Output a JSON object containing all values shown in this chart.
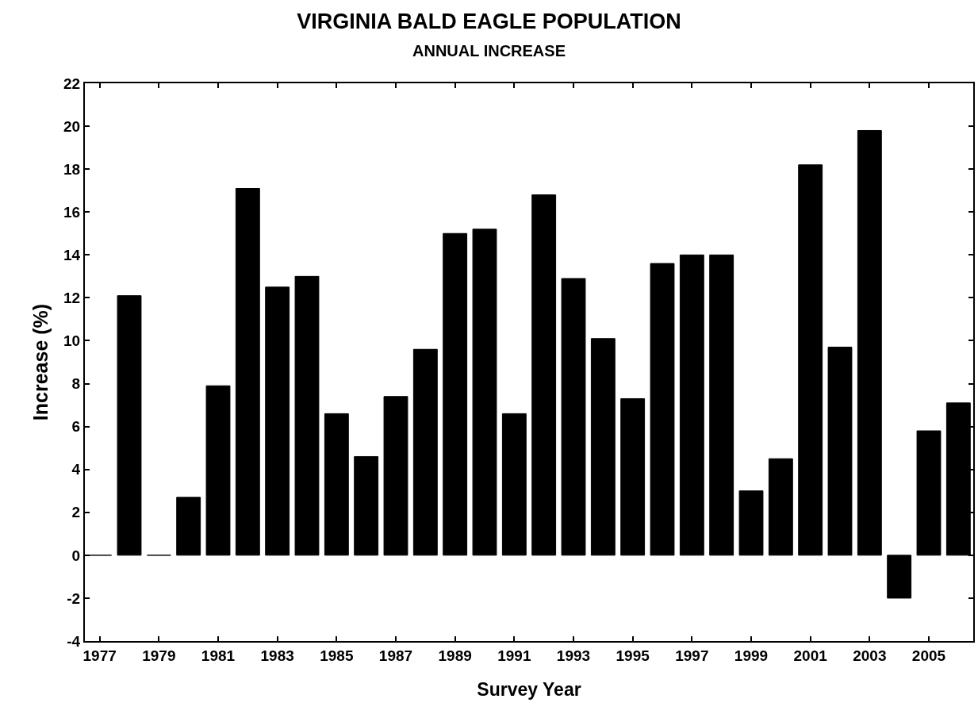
{
  "chart_data": {
    "type": "bar",
    "title": "VIRGINIA BALD EAGLE POPULATION",
    "subtitle": "ANNUAL INCREASE",
    "xlabel": "Survey Year",
    "ylabel": "Increase (%)",
    "x": [
      1977,
      1978,
      1979,
      1980,
      1981,
      1982,
      1983,
      1984,
      1985,
      1986,
      1987,
      1988,
      1989,
      1990,
      1991,
      1992,
      1993,
      1994,
      1995,
      1996,
      1997,
      1998,
      1999,
      2000,
      2001,
      2002,
      2003,
      2004,
      2005,
      2006
    ],
    "values": [
      0,
      12.1,
      0,
      2.7,
      7.9,
      17.1,
      12.5,
      13.0,
      6.6,
      4.6,
      7.4,
      9.6,
      15.0,
      15.2,
      6.6,
      16.8,
      12.9,
      10.1,
      7.3,
      13.6,
      14.0,
      14.0,
      3.0,
      4.5,
      18.2,
      9.7,
      19.8,
      -2.0,
      5.8,
      7.1
    ],
    "color": "#000000",
    "xlim": [
      1976.5,
      2006.5
    ],
    "xticks": [
      1977,
      1979,
      1981,
      1983,
      1985,
      1987,
      1989,
      1991,
      1993,
      1995,
      1997,
      1999,
      2001,
      2003,
      2005
    ],
    "ylim": [
      -4,
      22
    ],
    "yticks": [
      -4,
      -2,
      0,
      2,
      4,
      6,
      8,
      10,
      12,
      14,
      16,
      18,
      20,
      22
    ]
  }
}
